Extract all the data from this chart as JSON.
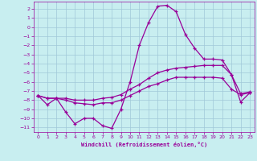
{
  "xlabel": "Windchill (Refroidissement éolien,°C)",
  "background_color": "#c8eef0",
  "grid_color": "#a0c8d8",
  "line_color": "#990099",
  "xlim": [
    -0.5,
    23.5
  ],
  "ylim": [
    -11.5,
    2.8
  ],
  "yticks": [
    2,
    1,
    0,
    -1,
    -2,
    -3,
    -4,
    -5,
    -6,
    -7,
    -8,
    -9,
    -10,
    -11
  ],
  "xticks": [
    0,
    1,
    2,
    3,
    4,
    5,
    6,
    7,
    8,
    9,
    10,
    11,
    12,
    13,
    14,
    15,
    16,
    17,
    18,
    19,
    20,
    21,
    22,
    23
  ],
  "series": {
    "line1_x": [
      0,
      1,
      2,
      3,
      4,
      5,
      6,
      7,
      8,
      9,
      10,
      11,
      12,
      13,
      14,
      15,
      16,
      17,
      18,
      19,
      20,
      21,
      22,
      23
    ],
    "line1_y": [
      -7.5,
      -8.5,
      -7.8,
      -9.3,
      -10.6,
      -10.0,
      -10.0,
      -10.8,
      -11.1,
      -9.0,
      -6.0,
      -2.0,
      0.5,
      2.3,
      2.4,
      1.7,
      -0.8,
      -2.3,
      -3.5,
      -3.5,
      -3.6,
      -5.2,
      -8.2,
      -7.2
    ],
    "line2_x": [
      0,
      1,
      2,
      3,
      4,
      5,
      6,
      7,
      8,
      9,
      10,
      11,
      12,
      13,
      14,
      15,
      16,
      17,
      18,
      19,
      20,
      21,
      22,
      23
    ],
    "line2_y": [
      -7.5,
      -7.8,
      -7.8,
      -7.8,
      -8.0,
      -8.0,
      -8.0,
      -7.8,
      -7.7,
      -7.4,
      -6.8,
      -6.3,
      -5.6,
      -5.0,
      -4.7,
      -4.5,
      -4.4,
      -4.3,
      -4.2,
      -4.2,
      -4.2,
      -5.2,
      -7.3,
      -7.1
    ],
    "line3_x": [
      0,
      1,
      2,
      3,
      4,
      5,
      6,
      7,
      8,
      9,
      10,
      11,
      12,
      13,
      14,
      15,
      16,
      17,
      18,
      19,
      20,
      21,
      22,
      23
    ],
    "line3_y": [
      -7.5,
      -7.8,
      -7.8,
      -8.0,
      -8.3,
      -8.4,
      -8.5,
      -8.3,
      -8.3,
      -8.0,
      -7.5,
      -7.0,
      -6.5,
      -6.2,
      -5.8,
      -5.5,
      -5.5,
      -5.5,
      -5.5,
      -5.5,
      -5.6,
      -6.8,
      -7.4,
      -7.2
    ]
  }
}
